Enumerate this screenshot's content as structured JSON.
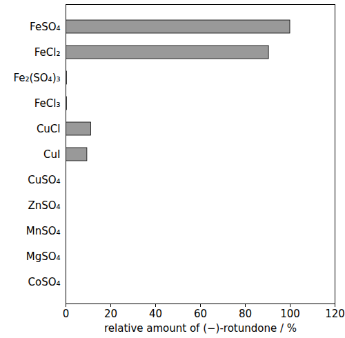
{
  "chart_data": {
    "type": "bar",
    "orientation": "horizontal",
    "categories": [
      "FeSO₄",
      "FeCl₂",
      "Fe₂(SO₄)₃",
      "FeCl₃",
      "CuCl",
      "CuI",
      "CuSO₄",
      "ZnSO₄",
      "MnSO₄",
      "MgSO₄",
      "CoSO₄"
    ],
    "values": [
      100,
      90.5,
      0.4,
      0.4,
      11.2,
      9.5,
      0,
      0,
      0,
      0,
      0
    ],
    "color": "#999999",
    "x_label": "relative amount of (−)-rotundone / %",
    "xlim": [
      0,
      120
    ],
    "xticks": [
      0,
      20,
      40,
      60,
      80,
      100,
      120
    ],
    "grid": false
  }
}
